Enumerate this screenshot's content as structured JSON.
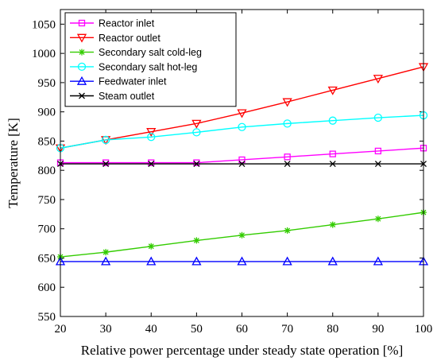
{
  "chart_data": {
    "type": "line",
    "xlabel": "Relative power percentage under steady state operation [%]",
    "ylabel": "Temperature [K]",
    "x": [
      20,
      30,
      40,
      50,
      60,
      70,
      80,
      90,
      100
    ],
    "xlim": [
      20,
      100
    ],
    "ylim": [
      550,
      1075
    ],
    "xticks": [
      20,
      30,
      40,
      50,
      60,
      70,
      80,
      90,
      100
    ],
    "yticks": [
      550,
      600,
      650,
      700,
      750,
      800,
      850,
      900,
      950,
      1000,
      1050
    ],
    "grid": false,
    "legend_position": "top-left",
    "series": [
      {
        "name": "Reactor inlet",
        "color": "#ff00ff",
        "marker": "square",
        "values": [
          813,
          813,
          813,
          813,
          818,
          823,
          828,
          833,
          838
        ]
      },
      {
        "name": "Reactor outlet",
        "color": "#ff0000",
        "marker": "triangle-down",
        "values": [
          838,
          852,
          866,
          880,
          898,
          917,
          937,
          957,
          977
        ]
      },
      {
        "name": "Secondary salt cold-leg",
        "color": "#33cc00",
        "marker": "asterisk",
        "values": [
          652,
          660,
          670,
          680,
          689,
          697,
          707,
          717,
          728
        ]
      },
      {
        "name": "Secondary salt hot-leg",
        "color": "#00ffff",
        "marker": "circle",
        "values": [
          838,
          852,
          857,
          865,
          874,
          880,
          885,
          890,
          894
        ]
      },
      {
        "name": "Feedwater inlet",
        "color": "#0000ff",
        "marker": "triangle-up",
        "values": [
          644,
          644,
          644,
          644,
          644,
          644,
          644,
          644,
          644
        ]
      },
      {
        "name": "Steam outlet",
        "color": "#000000",
        "marker": "x",
        "values": [
          811,
          811,
          811,
          811,
          811,
          811,
          811,
          811,
          811
        ]
      }
    ]
  }
}
